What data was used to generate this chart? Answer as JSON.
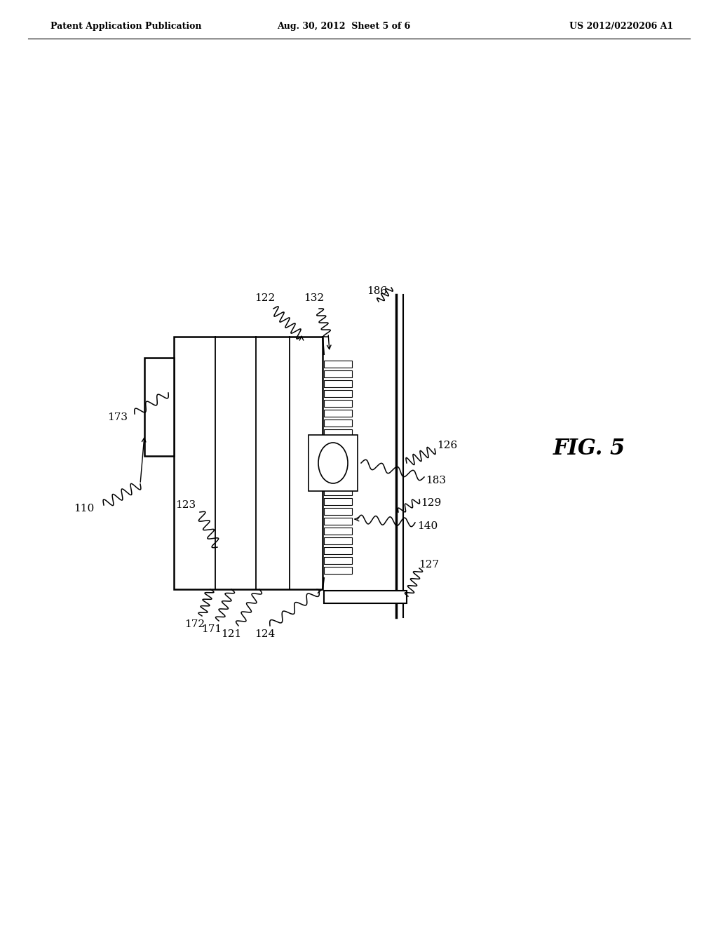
{
  "bg_color": "#ffffff",
  "header_left": "Patent Application Publication",
  "header_center": "Aug. 30, 2012  Sheet 5 of 6",
  "header_right": "US 2012/0220206 A1",
  "fig_label": "FIG. 5"
}
